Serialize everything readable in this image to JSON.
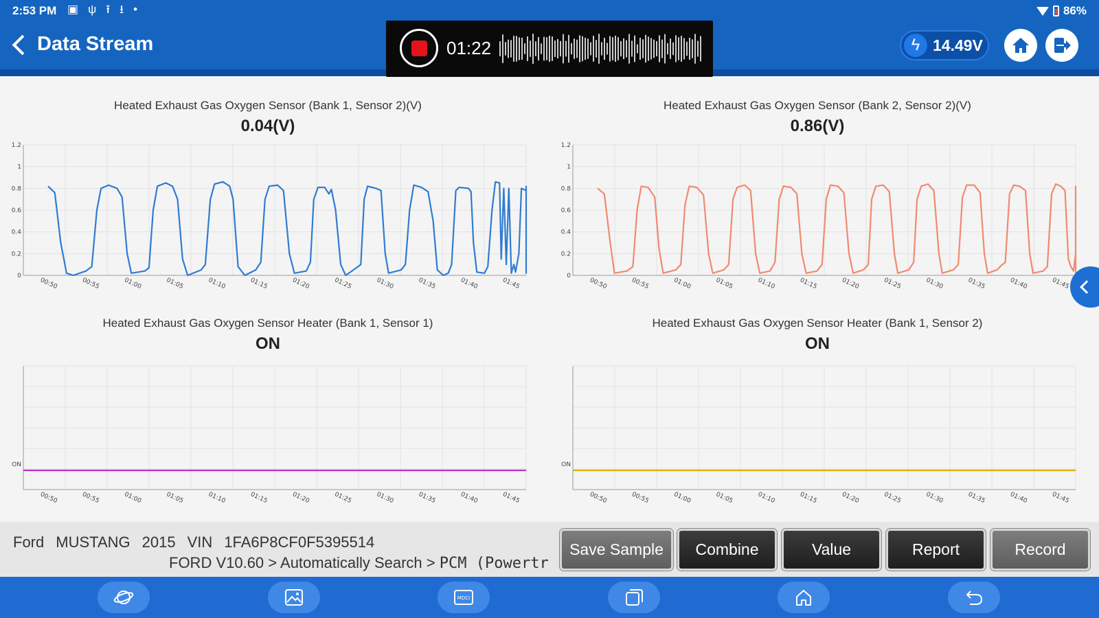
{
  "status_bar": {
    "time": "2:53 PM",
    "battery": "86%",
    "icons": [
      "image-icon",
      "stethoscope-icon",
      "upload-icon",
      "download-icon",
      "dot-icon"
    ]
  },
  "header": {
    "title": "Data Stream",
    "recording_time": "01:22",
    "voltage": "14.49V"
  },
  "charts": [
    {
      "title": "Heated Exhaust Gas Oxygen Sensor (Bank 1, Sensor 2)(V)",
      "value": "0.04(V)",
      "color": "#2f7bd2"
    },
    {
      "title": "Heated Exhaust Gas Oxygen Sensor (Bank 2, Sensor 2)(V)",
      "value": "0.86(V)",
      "color": "#f08a70"
    },
    {
      "title": "Heated Exhaust Gas Oxygen Sensor Heater (Bank 1, Sensor 1)",
      "value": "ON",
      "color": "#c02fd0"
    },
    {
      "title": "Heated Exhaust Gas Oxygen Sensor Heater (Bank 1, Sensor 2)",
      "value": "ON",
      "color": "#d9b300"
    }
  ],
  "chart_data": [
    {
      "type": "line",
      "title": "Heated Exhaust Gas Oxygen Sensor (Bank 1, Sensor 2)(V)",
      "x": [
        "00:50",
        "00:55",
        "01:00",
        "01:05",
        "01:10",
        "01:15",
        "01:20",
        "01:25",
        "01:30",
        "01:35",
        "01:40",
        "01:45"
      ],
      "yticks": [
        "0",
        "0.2",
        "0.4",
        "0.6",
        "0.8",
        "1",
        "1.2"
      ],
      "ylim": [
        0,
        1.2
      ],
      "xlim": [
        50,
        110
      ],
      "points": [
        [
          50,
          0.82
        ],
        [
          50.8,
          0.76
        ],
        [
          51.5,
          0.3
        ],
        [
          52.2,
          0.02
        ],
        [
          53,
          0.0
        ],
        [
          54.5,
          0.04
        ],
        [
          55.2,
          0.08
        ],
        [
          55.8,
          0.6
        ],
        [
          56.3,
          0.8
        ],
        [
          57.2,
          0.83
        ],
        [
          58.2,
          0.8
        ],
        [
          58.8,
          0.72
        ],
        [
          59.4,
          0.2
        ],
        [
          59.9,
          0.02
        ],
        [
          61.5,
          0.04
        ],
        [
          62,
          0.07
        ],
        [
          62.5,
          0.6
        ],
        [
          63,
          0.82
        ],
        [
          64,
          0.85
        ],
        [
          64.8,
          0.82
        ],
        [
          65.4,
          0.7
        ],
        [
          66,
          0.15
        ],
        [
          66.6,
          0.0
        ],
        [
          68.2,
          0.05
        ],
        [
          68.7,
          0.1
        ],
        [
          69.3,
          0.7
        ],
        [
          69.8,
          0.84
        ],
        [
          70.8,
          0.86
        ],
        [
          71.6,
          0.82
        ],
        [
          72,
          0.7
        ],
        [
          72.6,
          0.08
        ],
        [
          73.4,
          0.0
        ],
        [
          74.7,
          0.05
        ],
        [
          75.3,
          0.12
        ],
        [
          75.8,
          0.7
        ],
        [
          76.3,
          0.82
        ],
        [
          77.3,
          0.83
        ],
        [
          78,
          0.78
        ],
        [
          78.7,
          0.2
        ],
        [
          79.3,
          0.02
        ],
        [
          80.7,
          0.04
        ],
        [
          81.2,
          0.12
        ],
        [
          81.6,
          0.7
        ],
        [
          82.1,
          0.81
        ],
        [
          82.9,
          0.81
        ],
        [
          83.4,
          0.75
        ],
        [
          83.7,
          0.79
        ],
        [
          84.2,
          0.6
        ],
        [
          84.8,
          0.1
        ],
        [
          85.4,
          0.0
        ],
        [
          86.5,
          0.06
        ],
        [
          87.2,
          0.1
        ],
        [
          87.6,
          0.7
        ],
        [
          88,
          0.82
        ],
        [
          89,
          0.8
        ],
        [
          89.6,
          0.78
        ],
        [
          90.1,
          0.2
        ],
        [
          90.5,
          0.02
        ],
        [
          92,
          0.05
        ],
        [
          92.5,
          0.1
        ],
        [
          93,
          0.6
        ],
        [
          93.5,
          0.83
        ],
        [
          94.4,
          0.81
        ],
        [
          95.2,
          0.77
        ],
        [
          95.8,
          0.5
        ],
        [
          96.3,
          0.05
        ],
        [
          97,
          0.0
        ],
        [
          97.6,
          0.02
        ],
        [
          98,
          0.1
        ],
        [
          98.5,
          0.78
        ],
        [
          98.9,
          0.81
        ],
        [
          100,
          0.8
        ],
        [
          100.3,
          0.77
        ],
        [
          100.6,
          0.3
        ],
        [
          101,
          0.03
        ],
        [
          101.9,
          0.02
        ],
        [
          102.3,
          0.08
        ],
        [
          102.8,
          0.6
        ],
        [
          103.2,
          0.86
        ],
        [
          103.7,
          0.85
        ],
        [
          103.9,
          0.15
        ],
        [
          104.2,
          0.8
        ],
        [
          104.5,
          0.1
        ],
        [
          104.8,
          0.8
        ],
        [
          105.1,
          0.02
        ],
        [
          105.4,
          0.1
        ],
        [
          105.6,
          0.03
        ],
        [
          106,
          0.2
        ],
        [
          106.3,
          0.8
        ],
        [
          107,
          0.78
        ],
        [
          107.4,
          0.8
        ],
        [
          107.8,
          0.25
        ],
        [
          108.2,
          0.02
        ],
        [
          108.6,
          0.5
        ],
        [
          109,
          0.82
        ],
        [
          109.6,
          0.78
        ],
        [
          110.2,
          0.6
        ],
        [
          110.8,
          0.05
        ],
        [
          111.2,
          0.02
        ],
        [
          111.5,
          0.03
        ]
      ]
    },
    {
      "type": "line",
      "title": "Heated Exhaust Gas Oxygen Sensor (Bank 2, Sensor 2)(V)",
      "x": [
        "00:50",
        "00:55",
        "01:00",
        "01:05",
        "01:10",
        "01:15",
        "01:20",
        "01:25",
        "01:30",
        "01:35",
        "01:40",
        "01:45"
      ],
      "yticks": [
        "0",
        "0.2",
        "0.4",
        "0.6",
        "0.8",
        "1",
        "1.2"
      ],
      "ylim": [
        0,
        1.2
      ],
      "xlim": [
        50,
        110
      ],
      "points": [
        [
          50,
          0.8
        ],
        [
          50.8,
          0.75
        ],
        [
          51.5,
          0.3
        ],
        [
          52,
          0.02
        ],
        [
          53.5,
          0.04
        ],
        [
          54.2,
          0.08
        ],
        [
          54.7,
          0.6
        ],
        [
          55.2,
          0.82
        ],
        [
          56,
          0.81
        ],
        [
          56.8,
          0.72
        ],
        [
          57.3,
          0.25
        ],
        [
          57.8,
          0.02
        ],
        [
          59.3,
          0.05
        ],
        [
          59.9,
          0.1
        ],
        [
          60.4,
          0.65
        ],
        [
          60.9,
          0.82
        ],
        [
          61.8,
          0.81
        ],
        [
          62.6,
          0.74
        ],
        [
          63.2,
          0.2
        ],
        [
          63.7,
          0.02
        ],
        [
          65,
          0.05
        ],
        [
          65.6,
          0.1
        ],
        [
          66.1,
          0.7
        ],
        [
          66.6,
          0.81
        ],
        [
          67.5,
          0.83
        ],
        [
          68.2,
          0.78
        ],
        [
          68.8,
          0.2
        ],
        [
          69.3,
          0.02
        ],
        [
          70.5,
          0.04
        ],
        [
          71.1,
          0.12
        ],
        [
          71.6,
          0.7
        ],
        [
          72.1,
          0.82
        ],
        [
          73,
          0.81
        ],
        [
          73.7,
          0.75
        ],
        [
          74.3,
          0.2
        ],
        [
          74.8,
          0.02
        ],
        [
          76.1,
          0.04
        ],
        [
          76.7,
          0.1
        ],
        [
          77.2,
          0.7
        ],
        [
          77.7,
          0.83
        ],
        [
          78.6,
          0.82
        ],
        [
          79.3,
          0.76
        ],
        [
          79.9,
          0.2
        ],
        [
          80.4,
          0.02
        ],
        [
          81.6,
          0.05
        ],
        [
          82.2,
          0.1
        ],
        [
          82.6,
          0.7
        ],
        [
          83.1,
          0.82
        ],
        [
          84,
          0.83
        ],
        [
          84.7,
          0.77
        ],
        [
          85.3,
          0.2
        ],
        [
          85.7,
          0.02
        ],
        [
          87,
          0.05
        ],
        [
          87.6,
          0.12
        ],
        [
          88,
          0.7
        ],
        [
          88.5,
          0.82
        ],
        [
          89.3,
          0.84
        ],
        [
          90,
          0.78
        ],
        [
          90.6,
          0.2
        ],
        [
          91,
          0.02
        ],
        [
          92.3,
          0.05
        ],
        [
          92.9,
          0.1
        ],
        [
          93.4,
          0.72
        ],
        [
          93.9,
          0.83
        ],
        [
          94.8,
          0.83
        ],
        [
          95.5,
          0.76
        ],
        [
          96,
          0.2
        ],
        [
          96.4,
          0.02
        ],
        [
          97.5,
          0.05
        ],
        [
          98,
          0.09
        ],
        [
          98.5,
          0.12
        ],
        [
          99,
          0.75
        ],
        [
          99.5,
          0.83
        ],
        [
          100.2,
          0.82
        ],
        [
          100.9,
          0.78
        ],
        [
          101.4,
          0.2
        ],
        [
          101.8,
          0.02
        ],
        [
          103,
          0.04
        ],
        [
          103.5,
          0.08
        ],
        [
          104,
          0.75
        ],
        [
          104.5,
          0.84
        ],
        [
          105.1,
          0.82
        ],
        [
          105.6,
          0.78
        ],
        [
          106,
          0.15
        ],
        [
          106.3,
          0.08
        ],
        [
          106.6,
          0.04
        ],
        [
          106.9,
          0.2
        ],
        [
          107.4,
          0.8
        ],
        [
          108.2,
          0.82
        ],
        [
          108.7,
          0.75
        ],
        [
          109.1,
          0.1
        ],
        [
          109.5,
          0.04
        ],
        [
          110,
          0.08
        ],
        [
          110.4,
          0.76
        ],
        [
          111,
          0.8
        ],
        [
          111.4,
          0.78
        ],
        [
          111.8,
          0.05
        ],
        [
          112.2,
          0.0
        ]
      ]
    },
    {
      "type": "line",
      "title": "Heated Exhaust Gas Oxygen Sensor Heater (Bank 1, Sensor 1)",
      "x": [
        "00:50",
        "00:55",
        "01:00",
        "01:05",
        "01:10",
        "01:15",
        "01:20",
        "01:25",
        "01:30",
        "01:35",
        "01:40",
        "01:45"
      ],
      "yticks": [
        "ON"
      ],
      "values": "ON (constant)"
    },
    {
      "type": "line",
      "title": "Heated Exhaust Gas Oxygen Sensor Heater (Bank 1, Sensor 2)",
      "x": [
        "00:50",
        "00:55",
        "01:00",
        "01:05",
        "01:10",
        "01:15",
        "01:20",
        "01:25",
        "01:30",
        "01:35",
        "01:40",
        "01:45"
      ],
      "yticks": [
        "ON"
      ],
      "values": "ON (constant)"
    }
  ],
  "vehicle": {
    "make": "Ford",
    "model": "MUSTANG",
    "year": "2015",
    "vin_label": "VIN",
    "vin": "1FA6P8CF0F5395514"
  },
  "path": {
    "prefix": "FORD V10.60 > Automatically Search > ",
    "module": "PCM (Powertr"
  },
  "actions": {
    "save_sample": "Save Sample",
    "combine": "Combine",
    "value": "Value",
    "report": "Report",
    "record": "Record"
  },
  "nav_icons": [
    "planet-icon",
    "gallery-icon",
    "mdci-icon",
    "recent-apps-icon",
    "home-icon",
    "back-icon"
  ]
}
